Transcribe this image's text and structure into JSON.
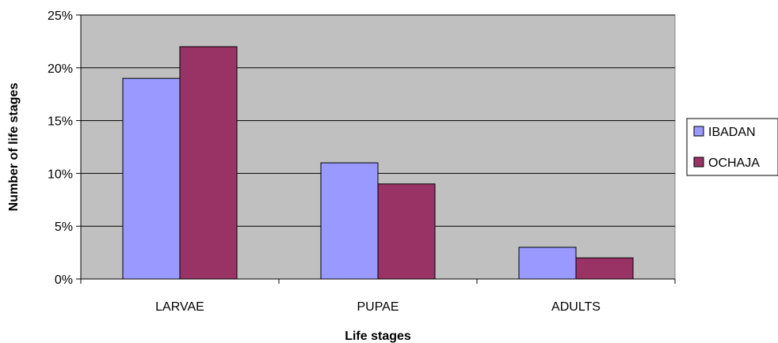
{
  "chart_data": {
    "type": "bar",
    "title": "",
    "xlabel": "Life stages",
    "ylabel": "Number of life stages",
    "categories": [
      "LARVAE",
      "PUPAE",
      "ADULTS"
    ],
    "series": [
      {
        "name": "IBADAN",
        "values": [
          19,
          11,
          3
        ],
        "color": "#9999ff"
      },
      {
        "name": "OCHAJA",
        "values": [
          22,
          9,
          2
        ],
        "color": "#993366"
      }
    ],
    "ylim": [
      0,
      25
    ],
    "yticks": [
      0,
      5,
      10,
      15,
      20,
      25
    ],
    "ytick_labels": [
      "0%",
      "5%",
      "10%",
      "15%",
      "20%",
      "25%"
    ],
    "grid": true,
    "plot_background": "#c0c0c0",
    "legend_position": "right"
  }
}
